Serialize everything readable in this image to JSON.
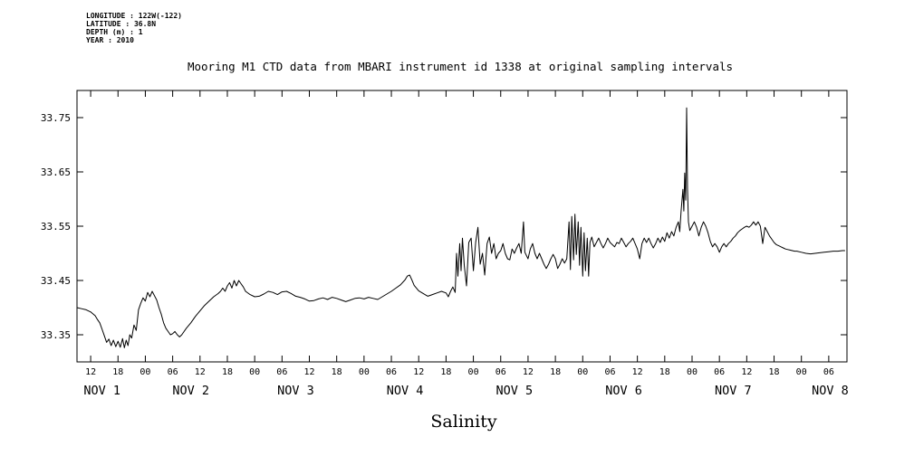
{
  "header": {
    "longitude": "LONGITUDE : 122W(-122)",
    "latitude": "LATITUDE : 36.8N",
    "depth": "DEPTH (m) : 1",
    "year": "YEAR : 2010"
  },
  "title": "Mooring M1 CTD data from MBARI instrument id 1338 at original sampling intervals",
  "colors": {
    "line": "#000000",
    "background": "#ffffff",
    "text": "#000000"
  },
  "chart_data": {
    "type": "line",
    "title": "Mooring M1 CTD data from MBARI instrument id 1338 at original sampling intervals",
    "xlabel": "Salinity",
    "ylabel": "",
    "x_unit": "hours since 2010-11-01 00:00",
    "xlim": [
      9,
      178
    ],
    "ylim": [
      33.3,
      33.8
    ],
    "grid": false,
    "legend": "none",
    "yticks": [
      33.35,
      33.45,
      33.55,
      33.65,
      33.75
    ],
    "xtick_hours": [
      12,
      18,
      24,
      30,
      36,
      42,
      48,
      54,
      60,
      66,
      72,
      78,
      84,
      90,
      96,
      102,
      108,
      114,
      120,
      126,
      132,
      138,
      144,
      150,
      156,
      162,
      168,
      174
    ],
    "xtick_labels": [
      "12",
      "18",
      "00",
      "06",
      "12",
      "18",
      "00",
      "06",
      "12",
      "18",
      "00",
      "06",
      "12",
      "18",
      "00",
      "06",
      "12",
      "18",
      "00",
      "06",
      "12",
      "18",
      "00",
      "06",
      "12",
      "18",
      "00",
      "06"
    ],
    "day_labels": [
      {
        "label": "NOV 1",
        "t": 14.5
      },
      {
        "label": "NOV 2",
        "t": 34
      },
      {
        "label": "NOV 3",
        "t": 57
      },
      {
        "label": "NOV 4",
        "t": 81
      },
      {
        "label": "NOV 5",
        "t": 105
      },
      {
        "label": "NOV 6",
        "t": 129
      },
      {
        "label": "NOV 7",
        "t": 153
      },
      {
        "label": "NOV 8",
        "t": 174.3
      }
    ],
    "series_name": "Salinity",
    "points": [
      [
        9,
        33.4
      ],
      [
        10,
        33.398
      ],
      [
        11,
        33.396
      ],
      [
        12,
        33.392
      ],
      [
        13,
        33.385
      ],
      [
        13.5,
        33.378
      ],
      [
        14,
        33.372
      ],
      [
        14.5,
        33.36
      ],
      [
        15,
        33.348
      ],
      [
        15.5,
        33.336
      ],
      [
        16,
        33.342
      ],
      [
        16.5,
        33.33
      ],
      [
        17,
        33.34
      ],
      [
        17.5,
        33.328
      ],
      [
        18,
        33.338
      ],
      [
        18.5,
        33.327
      ],
      [
        19,
        33.343
      ],
      [
        19.4,
        33.326
      ],
      [
        19.8,
        33.34
      ],
      [
        20.2,
        33.33
      ],
      [
        20.6,
        33.35
      ],
      [
        21,
        33.344
      ],
      [
        21.5,
        33.368
      ],
      [
        22,
        33.358
      ],
      [
        22.5,
        33.396
      ],
      [
        23,
        33.408
      ],
      [
        23.5,
        33.418
      ],
      [
        24,
        33.412
      ],
      [
        24.5,
        33.428
      ],
      [
        25,
        33.42
      ],
      [
        25.5,
        33.43
      ],
      [
        26,
        33.422
      ],
      [
        26.5,
        33.414
      ],
      [
        27,
        33.4
      ],
      [
        27.5,
        33.388
      ],
      [
        28,
        33.372
      ],
      [
        28.5,
        33.362
      ],
      [
        29,
        33.356
      ],
      [
        29.5,
        33.35
      ],
      [
        30,
        33.352
      ],
      [
        30.5,
        33.356
      ],
      [
        31,
        33.35
      ],
      [
        31.5,
        33.346
      ],
      [
        32,
        33.35
      ],
      [
        32.5,
        33.356
      ],
      [
        33,
        33.362
      ],
      [
        34,
        33.372
      ],
      [
        35,
        33.384
      ],
      [
        36,
        33.394
      ],
      [
        37,
        33.404
      ],
      [
        38,
        33.412
      ],
      [
        39,
        33.42
      ],
      [
        40,
        33.426
      ],
      [
        40.5,
        33.43
      ],
      [
        41,
        33.436
      ],
      [
        41.5,
        33.43
      ],
      [
        42,
        33.44
      ],
      [
        42.5,
        33.446
      ],
      [
        43,
        33.436
      ],
      [
        43.5,
        33.45
      ],
      [
        44,
        33.44
      ],
      [
        44.5,
        33.45
      ],
      [
        45,
        33.444
      ],
      [
        45.5,
        33.438
      ],
      [
        46,
        33.43
      ],
      [
        47,
        33.424
      ],
      [
        48,
        33.42
      ],
      [
        49,
        33.421
      ],
      [
        50,
        33.425
      ],
      [
        51,
        33.43
      ],
      [
        52,
        33.428
      ],
      [
        53,
        33.424
      ],
      [
        54,
        33.429
      ],
      [
        55,
        33.43
      ],
      [
        56,
        33.426
      ],
      [
        57,
        33.421
      ],
      [
        58,
        33.419
      ],
      [
        59,
        33.416
      ],
      [
        60,
        33.412
      ],
      [
        61,
        33.413
      ],
      [
        62,
        33.416
      ],
      [
        63,
        33.418
      ],
      [
        64,
        33.415
      ],
      [
        65,
        33.419
      ],
      [
        66,
        33.417
      ],
      [
        67,
        33.414
      ],
      [
        68,
        33.411
      ],
      [
        69,
        33.414
      ],
      [
        70,
        33.417
      ],
      [
        71,
        33.418
      ],
      [
        72,
        33.416
      ],
      [
        73,
        33.419
      ],
      [
        74,
        33.417
      ],
      [
        75,
        33.415
      ],
      [
        76,
        33.42
      ],
      [
        77,
        33.425
      ],
      [
        78,
        33.43
      ],
      [
        79,
        33.436
      ],
      [
        80,
        33.442
      ],
      [
        81,
        33.451
      ],
      [
        81.5,
        33.458
      ],
      [
        82,
        33.46
      ],
      [
        82.5,
        33.451
      ],
      [
        83,
        33.441
      ],
      [
        84,
        33.431
      ],
      [
        85,
        33.426
      ],
      [
        86,
        33.421
      ],
      [
        87,
        33.424
      ],
      [
        88,
        33.427
      ],
      [
        89,
        33.43
      ],
      [
        90,
        33.427
      ],
      [
        90.5,
        33.42
      ],
      [
        91,
        33.43
      ],
      [
        91.5,
        33.438
      ],
      [
        92,
        33.428
      ],
      [
        92.3,
        33.5
      ],
      [
        92.6,
        33.458
      ],
      [
        93,
        33.518
      ],
      [
        93.3,
        33.468
      ],
      [
        93.6,
        33.528
      ],
      [
        94,
        33.478
      ],
      [
        94.5,
        33.44
      ],
      [
        95,
        33.52
      ],
      [
        95.5,
        33.528
      ],
      [
        96,
        33.468
      ],
      [
        96.5,
        33.52
      ],
      [
        97,
        33.548
      ],
      [
        97.5,
        33.48
      ],
      [
        98,
        33.5
      ],
      [
        98.5,
        33.46
      ],
      [
        99,
        33.518
      ],
      [
        99.5,
        33.53
      ],
      [
        100,
        33.5
      ],
      [
        100.5,
        33.518
      ],
      [
        101,
        33.49
      ],
      [
        101.5,
        33.5
      ],
      [
        102,
        33.505
      ],
      [
        102.5,
        33.518
      ],
      [
        103,
        33.5
      ],
      [
        103.5,
        33.49
      ],
      [
        104,
        33.488
      ],
      [
        104.5,
        33.508
      ],
      [
        105,
        33.5
      ],
      [
        105.5,
        33.51
      ],
      [
        106,
        33.518
      ],
      [
        106.5,
        33.5
      ],
      [
        107,
        33.558
      ],
      [
        107.3,
        33.502
      ],
      [
        108,
        33.49
      ],
      [
        108.5,
        33.508
      ],
      [
        109,
        33.518
      ],
      [
        109.5,
        33.5
      ],
      [
        110,
        33.49
      ],
      [
        110.5,
        33.5
      ],
      [
        111,
        33.49
      ],
      [
        111.5,
        33.48
      ],
      [
        112,
        33.472
      ],
      [
        112.5,
        33.48
      ],
      [
        113,
        33.49
      ],
      [
        113.5,
        33.498
      ],
      [
        114,
        33.49
      ],
      [
        114.5,
        33.472
      ],
      [
        115,
        33.48
      ],
      [
        115.5,
        33.49
      ],
      [
        116,
        33.482
      ],
      [
        116.5,
        33.49
      ],
      [
        117,
        33.558
      ],
      [
        117.3,
        33.47
      ],
      [
        117.6,
        33.568
      ],
      [
        118,
        33.488
      ],
      [
        118.3,
        33.572
      ],
      [
        118.6,
        33.498
      ],
      [
        119,
        33.558
      ],
      [
        119.3,
        33.478
      ],
      [
        119.6,
        33.548
      ],
      [
        120,
        33.458
      ],
      [
        120.3,
        33.538
      ],
      [
        120.6,
        33.468
      ],
      [
        121,
        33.528
      ],
      [
        121.3,
        33.458
      ],
      [
        121.6,
        33.52
      ],
      [
        122,
        33.53
      ],
      [
        122.5,
        33.512
      ],
      [
        123,
        33.52
      ],
      [
        123.5,
        33.528
      ],
      [
        124,
        33.518
      ],
      [
        124.5,
        33.51
      ],
      [
        125,
        33.518
      ],
      [
        125.5,
        33.528
      ],
      [
        126,
        33.52
      ],
      [
        127,
        33.512
      ],
      [
        127.5,
        33.52
      ],
      [
        128,
        33.518
      ],
      [
        128.5,
        33.528
      ],
      [
        129,
        33.52
      ],
      [
        129.5,
        33.512
      ],
      [
        130,
        33.518
      ],
      [
        130.5,
        33.522
      ],
      [
        131,
        33.528
      ],
      [
        131.5,
        33.518
      ],
      [
        132,
        33.508
      ],
      [
        132.5,
        33.49
      ],
      [
        133,
        33.518
      ],
      [
        133.5,
        33.528
      ],
      [
        134,
        33.52
      ],
      [
        134.5,
        33.528
      ],
      [
        135,
        33.518
      ],
      [
        135.5,
        33.51
      ],
      [
        136,
        33.518
      ],
      [
        136.5,
        33.528
      ],
      [
        137,
        33.52
      ],
      [
        137.5,
        33.53
      ],
      [
        138,
        33.522
      ],
      [
        138.5,
        33.538
      ],
      [
        139,
        33.528
      ],
      [
        139.5,
        33.54
      ],
      [
        140,
        33.532
      ],
      [
        140.5,
        33.548
      ],
      [
        141,
        33.558
      ],
      [
        141.3,
        33.54
      ],
      [
        141.6,
        33.578
      ],
      [
        142,
        33.618
      ],
      [
        142.2,
        33.578
      ],
      [
        142.4,
        33.648
      ],
      [
        142.6,
        33.598
      ],
      [
        142.8,
        33.768
      ],
      [
        143,
        33.618
      ],
      [
        143.2,
        33.558
      ],
      [
        143.5,
        33.542
      ],
      [
        144,
        33.55
      ],
      [
        144.5,
        33.558
      ],
      [
        145,
        33.548
      ],
      [
        145.5,
        33.532
      ],
      [
        146,
        33.548
      ],
      [
        146.5,
        33.558
      ],
      [
        147,
        33.55
      ],
      [
        147.5,
        33.538
      ],
      [
        148,
        33.522
      ],
      [
        148.5,
        33.512
      ],
      [
        149,
        33.518
      ],
      [
        149.5,
        33.512
      ],
      [
        150,
        33.502
      ],
      [
        150.5,
        33.512
      ],
      [
        151,
        33.518
      ],
      [
        151.5,
        33.512
      ],
      [
        152,
        33.518
      ],
      [
        152.5,
        33.522
      ],
      [
        153,
        33.528
      ],
      [
        153.5,
        33.532
      ],
      [
        154,
        33.538
      ],
      [
        154.5,
        33.542
      ],
      [
        155,
        33.545
      ],
      [
        155.5,
        33.548
      ],
      [
        156,
        33.55
      ],
      [
        156.5,
        33.548
      ],
      [
        157,
        33.552
      ],
      [
        157.5,
        33.558
      ],
      [
        158,
        33.552
      ],
      [
        158.5,
        33.558
      ],
      [
        159,
        33.55
      ],
      [
        159.5,
        33.518
      ],
      [
        160,
        33.548
      ],
      [
        160.5,
        33.54
      ],
      [
        161,
        33.532
      ],
      [
        161.5,
        33.526
      ],
      [
        162,
        33.52
      ],
      [
        162.5,
        33.516
      ],
      [
        163,
        33.514
      ],
      [
        163.5,
        33.512
      ],
      [
        164,
        33.51
      ],
      [
        164.5,
        33.508
      ],
      [
        165,
        33.507
      ],
      [
        165.5,
        33.506
      ],
      [
        166,
        33.505
      ],
      [
        166.5,
        33.504
      ],
      [
        167,
        33.504
      ],
      [
        168,
        33.502
      ],
      [
        169,
        33.5
      ],
      [
        170,
        33.499
      ],
      [
        171,
        33.5
      ],
      [
        172,
        33.501
      ],
      [
        173,
        33.502
      ],
      [
        174,
        33.503
      ],
      [
        175,
        33.504
      ],
      [
        176,
        33.504
      ],
      [
        177,
        33.505
      ],
      [
        177.5,
        33.505
      ]
    ]
  }
}
